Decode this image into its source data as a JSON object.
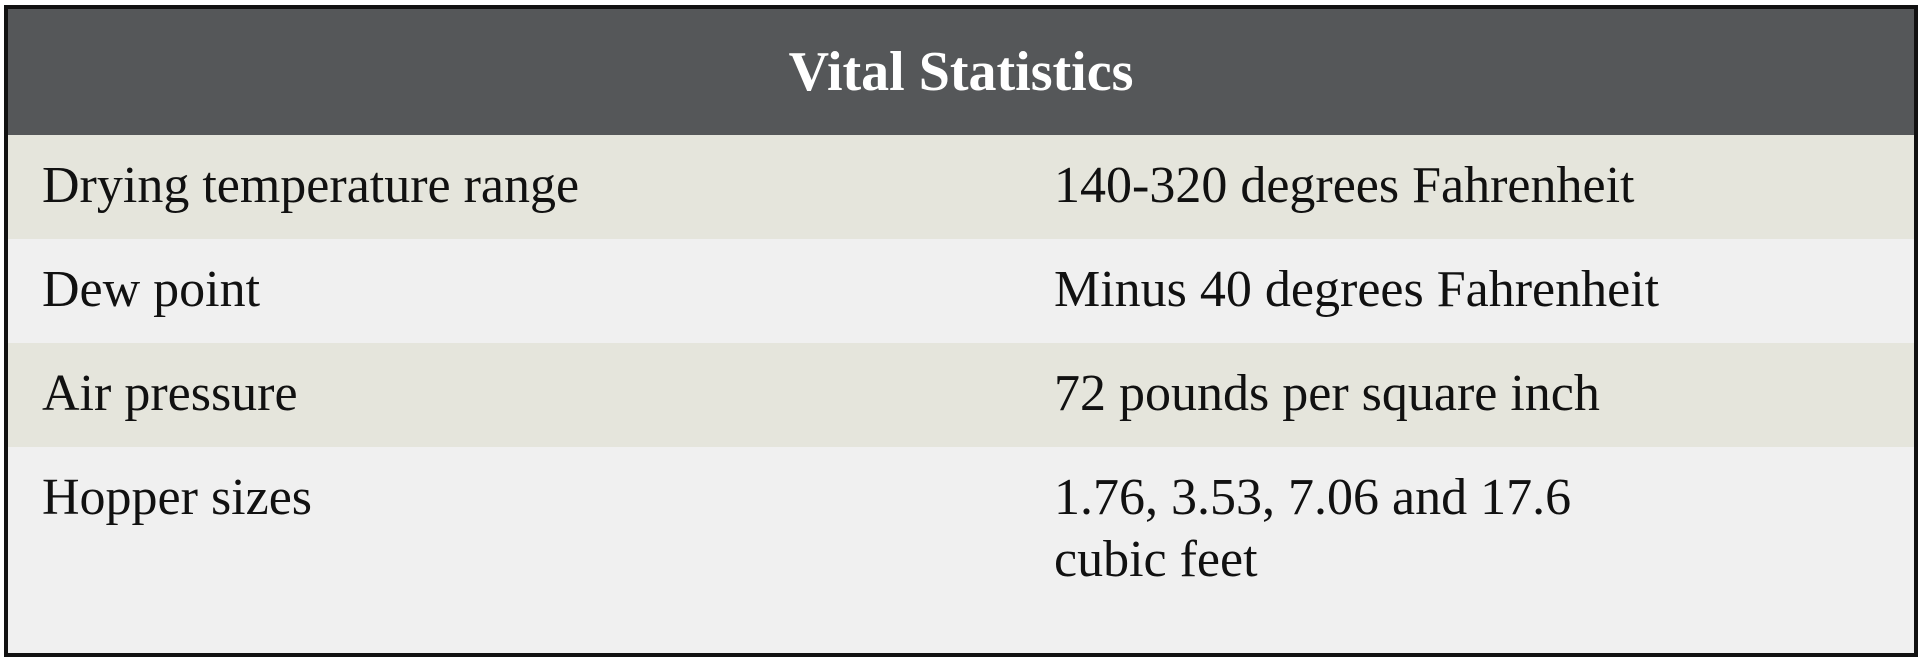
{
  "table": {
    "title": "Vital Statistics",
    "rows": [
      [
        "Drying temperature range",
        "140-320 degrees Fahrenheit"
      ],
      [
        "Dew point",
        "Minus 40 degrees Fahrenheit"
      ],
      [
        "Air pressure",
        "72 pounds per square inch"
      ],
      [
        "Hopper sizes",
        "1.76, 3.53, 7.06 and 17.6 cubic feet"
      ]
    ]
  }
}
